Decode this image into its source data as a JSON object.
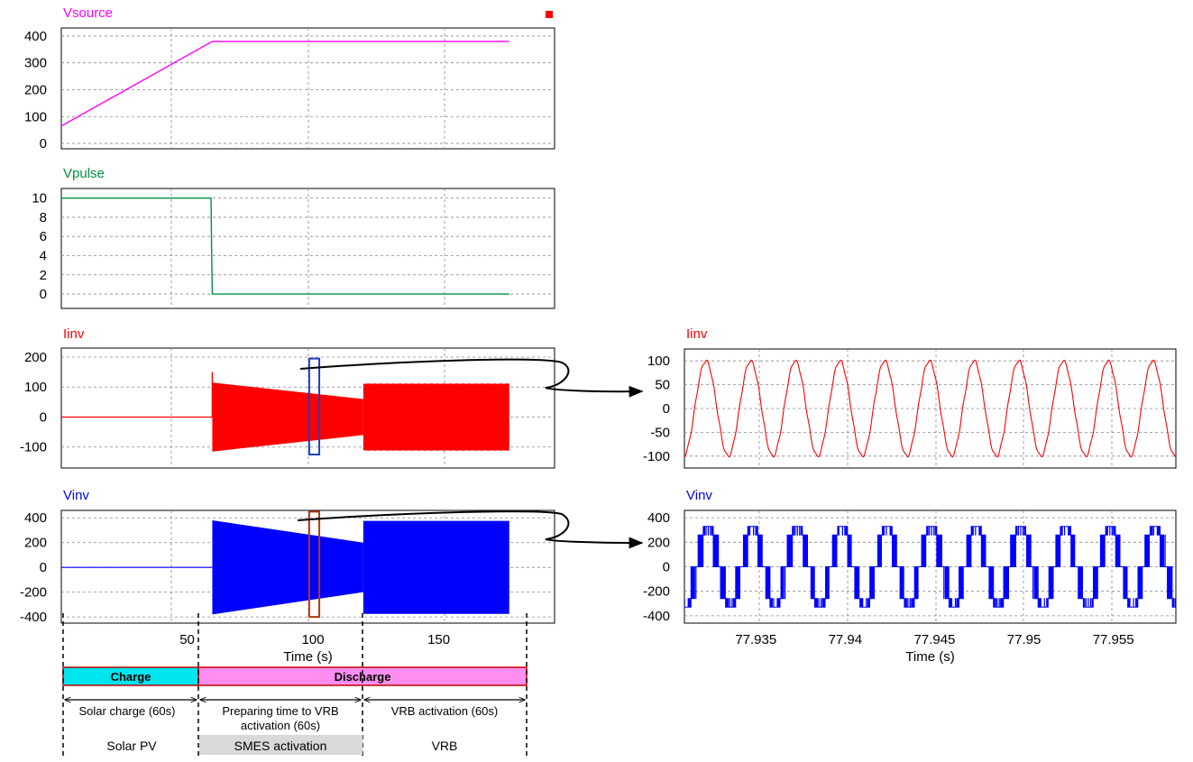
{
  "chart_data": [
    {
      "type": "line",
      "title": "Vsource",
      "xlabel": "",
      "xlim": [
        0,
        196
      ],
      "ylim": [
        -20,
        430
      ],
      "yticks": [
        0,
        100,
        200,
        300,
        400
      ],
      "grid": true,
      "color": "#ff00ff",
      "series": [
        {
          "name": "Vsource",
          "x": [
            0,
            60,
            178
          ],
          "y": [
            65,
            380,
            380
          ]
        }
      ]
    },
    {
      "type": "line",
      "title": "Vpulse",
      "xlabel": "",
      "xlim": [
        0,
        196
      ],
      "ylim": [
        -1.5,
        11
      ],
      "yticks": [
        0,
        2,
        4,
        6,
        8,
        10
      ],
      "grid": true,
      "color": "#009040",
      "series": [
        {
          "name": "Vpulse",
          "x": [
            0,
            59.5,
            59.7,
            60,
            178
          ],
          "y": [
            10,
            10,
            5,
            0,
            0
          ]
        }
      ]
    },
    {
      "type": "area",
      "title": "Iinv",
      "xlabel": "",
      "xlim": [
        0,
        196
      ],
      "ylim": [
        -170,
        230
      ],
      "yticks": [
        -100,
        0,
        100,
        200
      ],
      "grid": true,
      "color": "#ff0000",
      "series": [
        {
          "name": "Iinv",
          "x": [
            0,
            60,
            60,
            120,
            120,
            178
          ],
          "envelope_upper": [
            0,
            115,
            115,
            60,
            112,
            112
          ],
          "envelope_lower": [
            0,
            -115,
            -115,
            -60,
            -112,
            -112
          ],
          "spike": [
            60,
            150
          ]
        }
      ],
      "zoom_box": {
        "x": [
          98.5,
          102.5
        ],
        "y": [
          -125,
          195
        ]
      }
    },
    {
      "type": "area",
      "title": "Vinv",
      "xlabel": "Time (s)",
      "xlim": [
        0,
        196
      ],
      "ylim": [
        -450,
        460
      ],
      "yticks": [
        -400,
        -200,
        0,
        200,
        400
      ],
      "xticks": [
        50,
        100,
        150
      ],
      "grid": true,
      "color": "#0000ff",
      "series": [
        {
          "name": "Vinv",
          "x": [
            0,
            60,
            60,
            120,
            120,
            178
          ],
          "envelope_upper": [
            0,
            380,
            380,
            200,
            375,
            375
          ],
          "envelope_lower": [
            0,
            -380,
            -380,
            -200,
            -375,
            -375
          ]
        }
      ],
      "zoom_box": {
        "x": [
          98.5,
          102.5
        ],
        "y": [
          -400,
          450
        ]
      }
    },
    {
      "type": "line",
      "title": "Iinv",
      "xlabel": "",
      "xlim": [
        77.931,
        77.9585
      ],
      "ylim": [
        -125,
        125
      ],
      "yticks": [
        -100,
        -50,
        0,
        50,
        100
      ],
      "grid": true,
      "color": "#ff0000",
      "series": [
        {
          "name": "Iinv",
          "amplitude": 100,
          "period": 0.0025,
          "phase_peak_at": 77.9322
        }
      ]
    },
    {
      "type": "line",
      "title": "Vinv",
      "xlabel": "Time (s)",
      "xlim": [
        77.931,
        77.9585
      ],
      "ylim": [
        -460,
        460
      ],
      "yticks": [
        -400,
        -200,
        0,
        200,
        400
      ],
      "xticks": [
        77.935,
        77.94,
        77.945,
        77.95,
        77.955
      ],
      "xticklabels": [
        "77.935",
        "77.94",
        "77.945",
        "77.95",
        "77.955"
      ],
      "grid": true,
      "color": "#0000ff",
      "series": [
        {
          "name": "Vinv",
          "levels": [
            0,
            260,
            330
          ],
          "period": 0.0025
        }
      ]
    }
  ],
  "phases": {
    "charge": "Charge",
    "discharge": "Discharge",
    "solar_charge": "Solar charge (60s)",
    "preparing_line1": "Preparing time to VRB",
    "preparing_line2": "activation (60s)",
    "vrb_activation": "VRB activation (60s)",
    "solar_pv": "Solar PV",
    "smes_activation": "SMES activation",
    "vrb": "VRB"
  },
  "colors": {
    "charge_bar": "#00e5ee",
    "discharge_bar": "#ff8ef0",
    "smes_bg": "#d9d9d9",
    "box_blue": "#1f3fbf",
    "box_brown": "#b03a10"
  }
}
